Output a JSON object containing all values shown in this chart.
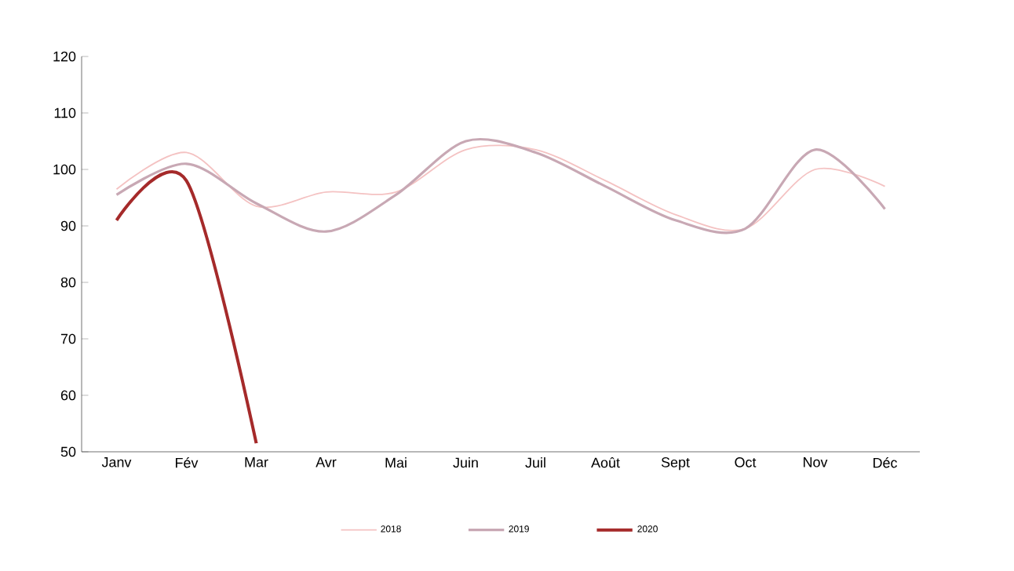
{
  "chart_data": {
    "type": "line",
    "categories": [
      "Janv",
      "Fév",
      "Mar",
      "Avr",
      "Mai",
      "Juin",
      "Juil",
      "Août",
      "Sept",
      "Oct",
      "Nov",
      "Déc"
    ],
    "ylim": [
      50,
      120
    ],
    "yticks": [
      50,
      60,
      70,
      80,
      90,
      100,
      110,
      120
    ],
    "grid": false,
    "legend": "bottom",
    "marker": "none",
    "line_style": "solid",
    "series": [
      {
        "name": "2018",
        "color": "#f4c2c2",
        "values": [
          96.5,
          103,
          93.5,
          96,
          96,
          103.5,
          103.5,
          98,
          92,
          89.5,
          100,
          97
        ]
      },
      {
        "name": "2019",
        "color": "#c8a8b4",
        "values": [
          95.5,
          101,
          94,
          89,
          95.5,
          105,
          103,
          97,
          91,
          89.5,
          103.5,
          93
        ]
      },
      {
        "name": "2020",
        "color": "#a52a2a",
        "values": [
          91,
          98,
          51.5,
          null,
          null,
          null,
          null,
          null,
          null,
          null,
          null,
          null
        ]
      }
    ]
  }
}
